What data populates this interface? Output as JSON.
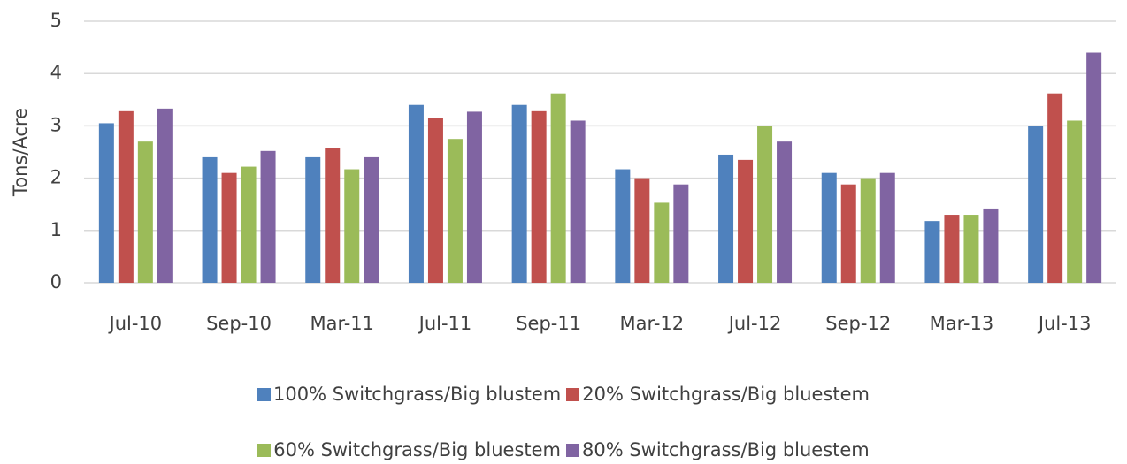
{
  "chart_data": {
    "type": "bar",
    "y_label": "Tons/Acre",
    "categories": [
      "Jul-10",
      "Sep-10",
      "Mar-11",
      "Jul-11",
      "Sep-11",
      "Mar-12",
      "Jul-12",
      "Sep-12",
      "Mar-13",
      "Jul-13"
    ],
    "series": [
      {
        "name": "100% Switchgrass/Big blustem",
        "color": "#4f81bd",
        "values": [
          3.05,
          2.4,
          2.4,
          3.4,
          3.4,
          2.17,
          2.45,
          2.1,
          1.18,
          3.0
        ]
      },
      {
        "name": "20% Switchgrass/Big bluestem",
        "color": "#c0504d",
        "values": [
          3.28,
          2.1,
          2.58,
          3.15,
          3.28,
          2.0,
          2.35,
          1.88,
          1.3,
          3.62
        ]
      },
      {
        "name": "60% Switchgrass/Big bluestem",
        "color": "#9bbb59",
        "values": [
          2.7,
          2.22,
          2.17,
          2.75,
          3.62,
          1.53,
          3.0,
          2.0,
          1.3,
          3.1
        ]
      },
      {
        "name": "80% Switchgrass/Big bluestem",
        "color": "#8064a2",
        "values": [
          3.33,
          2.52,
          2.4,
          3.27,
          3.1,
          1.88,
          2.7,
          2.1,
          1.42,
          4.4
        ]
      }
    ],
    "ylim": [
      0,
      5
    ],
    "yticks": [
      0,
      1,
      2,
      3,
      4,
      5
    ],
    "grid": true
  }
}
